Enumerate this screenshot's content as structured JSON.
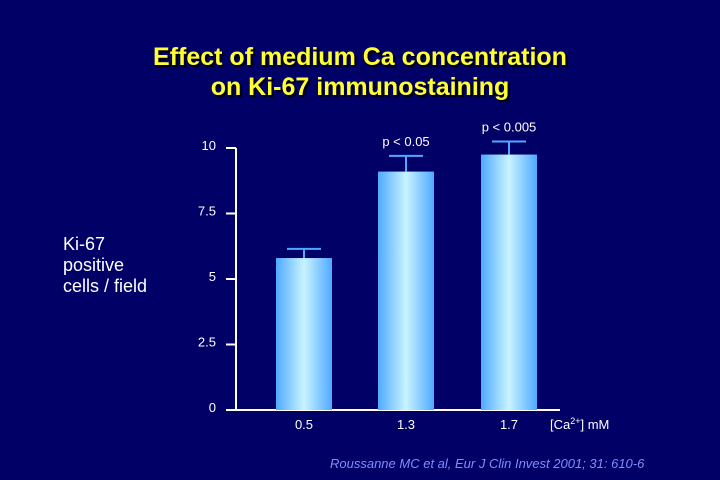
{
  "chart_data": {
    "type": "bar",
    "title": "Effect of medium Ca concentration on Ki-67 immunostaining",
    "title_lines": [
      "Effect of medium Ca concentration",
      "on Ki-67 immunostaining"
    ],
    "ylabel_lines": [
      "Ki-67",
      "positive",
      "cells / field"
    ],
    "xlabel_prefix": "[Ca",
    "xlabel_sup": "2+",
    "xlabel_suffix": "] mM",
    "categories": [
      "0.5",
      "1.3",
      "1.7"
    ],
    "values": [
      5.8,
      9.1,
      9.75
    ],
    "errors": [
      0.35,
      0.6,
      0.5
    ],
    "annotations": [
      "",
      "p < 0.05",
      "p < 0.005"
    ],
    "yticks": [
      "0",
      "2.5",
      "5",
      "7.5",
      "10"
    ],
    "ylim": [
      0,
      10
    ],
    "bar_color_edge": "#4fa9ff",
    "bar_color_center": "#c8f4ff"
  },
  "citation": "Roussanne MC et al, Eur J Clin Invest 2001; 31: 610-6",
  "colors": {
    "background": "#000066",
    "title": "#ffff33",
    "axis": "#ffffff",
    "citation": "#7f8cff"
  }
}
